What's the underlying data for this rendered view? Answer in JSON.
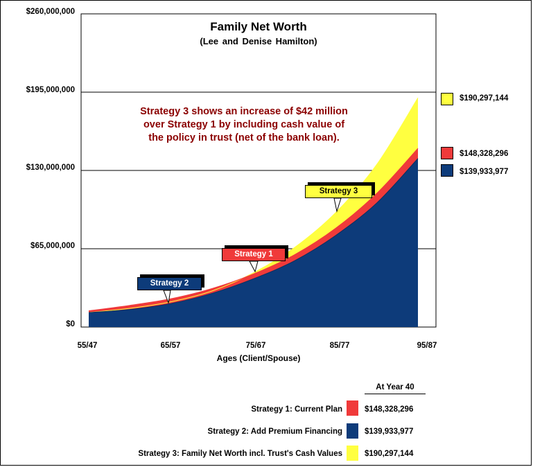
{
  "chart_data": {
    "type": "area",
    "title": "Family Net Worth",
    "subtitle": "(Lee and Denise Hamilton)",
    "xlabel": "Ages (Client/Spouse)",
    "x_tick_labels": [
      "55/47",
      "65/57",
      "75/67",
      "85/77",
      "95/87"
    ],
    "y_tick_labels": [
      "$0",
      "$65,000,000",
      "$130,000,000",
      "$195,000,000",
      "$260,000,000"
    ],
    "ylim": [
      0,
      260000000
    ],
    "grid": "horizontal",
    "years": [
      0,
      5,
      10,
      15,
      20,
      25,
      30,
      35,
      40
    ],
    "series": [
      {
        "name": "Strategy 2",
        "color": "#0d3b7a",
        "values": [
          12000000,
          14600000,
          19500000,
          28000000,
          40000000,
          55000000,
          76000000,
          103000000,
          139933977
        ]
      },
      {
        "name": "Strategy 1",
        "color": "#f03a3a",
        "values": [
          13500000,
          18000000,
          23500000,
          32000000,
          44000000,
          60000000,
          82000000,
          111000000,
          148328296
        ]
      },
      {
        "name": "Strategy 3",
        "color": "#ffff40",
        "values": [
          12000000,
          15500000,
          21000000,
          30000000,
          45000000,
          66000000,
          95000000,
          135000000,
          190297144
        ]
      }
    ],
    "end_labels": [
      {
        "text": "$190,297,144",
        "color": "#ffff40"
      },
      {
        "text": "$148,328,296",
        "color": "#f03a3a"
      },
      {
        "text": "$139,933,977",
        "color": "#0d3b7a"
      }
    ],
    "annotation": "Strategy 3 shows an increase of $42 million over Strategy 1 by including cash value of the policy in trust (net of the bank loan).",
    "callouts": [
      {
        "label": "Strategy 2",
        "bg": "#0d3b7a",
        "fg": "#ffffff"
      },
      {
        "label": "Strategy 1",
        "bg": "#f03a3a",
        "fg": "#ffffff"
      },
      {
        "label": "Strategy 3",
        "bg": "#ffff40",
        "fg": "#000000"
      }
    ],
    "legend": {
      "placement": "bottom-right",
      "header": "At Year 40",
      "items": [
        {
          "label": "Strategy 1:  Current Plan",
          "value": "$148,328,296",
          "color": "#f03a3a"
        },
        {
          "label": "Strategy 2:  Add Premium Financing",
          "value": "$139,933,977",
          "color": "#0d3b7a"
        },
        {
          "label": "Strategy 3:  Family Net Worth incl. Trust's Cash Values",
          "value": "$190,297,144",
          "color": "#ffff40"
        }
      ]
    }
  }
}
